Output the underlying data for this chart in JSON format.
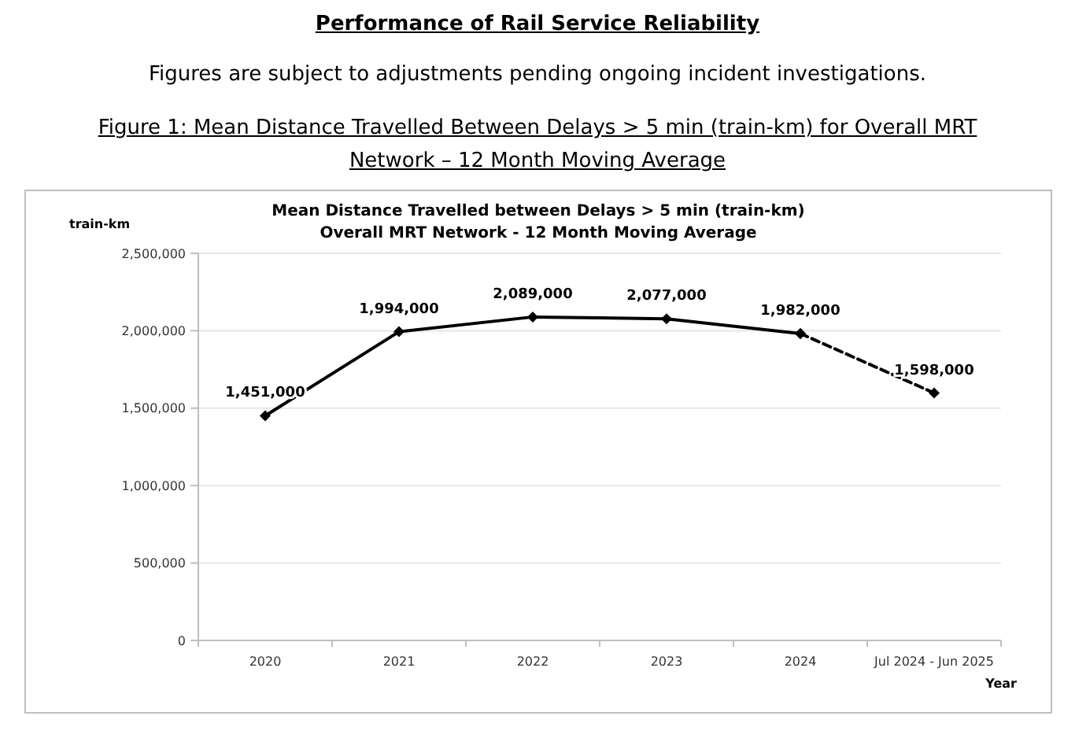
{
  "chart_data": {
    "type": "line",
    "title": "Mean Distance Travelled between Delays > 5 min (train-km)",
    "subtitle": "Overall MRT Network - 12 Month Moving Average",
    "xlabel": "Year",
    "ylabel": "train-km",
    "annotations": [
      "Performance of Rail Service Reliability",
      "Figures are subject to adjustments pending ongoing incident investigations.",
      "Figure 1: Mean Distance Travelled Between Delays > 5 min (train-km) for Overall MRT Network – 12 Month Moving Average"
    ],
    "categories": [
      "2020",
      "2021",
      "2022",
      "2023",
      "2024",
      "Jul 2024 - Jun 2025"
    ],
    "series": [
      {
        "color": "#000000",
        "line_style": "solid",
        "values": [
          1451000,
          1994000,
          2089000,
          2077000,
          1982000,
          null
        ],
        "value_labels": [
          "1,451,000",
          "1,994,000",
          "2,089,000",
          "2,077,000",
          "1,982,000",
          null
        ]
      },
      {
        "color": "#000000",
        "line_style": "dashed",
        "values": [
          null,
          null,
          null,
          null,
          1982000,
          1598000
        ],
        "value_labels": [
          null,
          null,
          null,
          null,
          null,
          "1,598,000"
        ]
      }
    ],
    "ylim": [
      0,
      2500000
    ],
    "yticks": [
      0,
      {
        "value": 500000,
        "label": "500,000"
      },
      {
        "value": 1000000,
        "label": "1,000,000"
      },
      {
        "value": 1500000,
        "label": "1,500,000"
      },
      {
        "value": 2000000,
        "label": "2,000,000"
      },
      {
        "value": 2500000,
        "label": "2,500,000"
      }
    ],
    "grid": "y",
    "marker": "diamond"
  }
}
